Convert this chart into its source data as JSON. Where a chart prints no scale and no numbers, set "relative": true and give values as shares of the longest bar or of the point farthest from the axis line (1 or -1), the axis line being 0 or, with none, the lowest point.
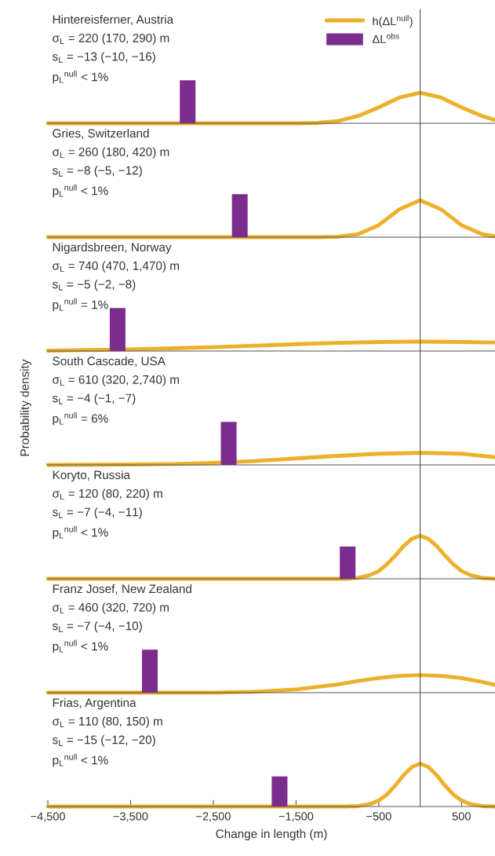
{
  "chart_data": [
    {
      "type": "line",
      "title": "Hintereisferner, Austria",
      "relative": true,
      "legend": "top right",
      "tick_labels": false,
      "annotations": [
        "σ$_{L}$ = 220 (170, 290) m",
        "s$_{L}$ = −13 (−10, −16)",
        "p$_{L}$$^{null}$ < 1%"
      ],
      "xlim": [
        -4500,
        905
      ],
      "series": [
        {
          "name": "h(ΔL$^{null}$)",
          "color": "#ecb02a",
          "x": [
            -4500,
            -1500,
            -1250,
            -1000,
            -750,
            -500,
            -250,
            0,
            250,
            500,
            750,
            900
          ],
          "values": [
            0,
            0,
            0.01,
            0.05,
            0.17,
            0.37,
            0.6,
            0.71,
            0.6,
            0.37,
            0.17,
            0.08
          ]
        },
        {
          "type": "bar",
          "name": "ΔL$^{obs}$",
          "color": "#7b2d8e",
          "x": [
            -2810
          ],
          "values": [
            1
          ]
        }
      ]
    },
    {
      "type": "line",
      "title": "Gries, Switzerland",
      "relative": true,
      "tick_labels": false,
      "annotations": [
        "σ$_{L}$ = 260 (180, 420) m",
        "s$_{L}$ = −8 (−5, −12)",
        "p$_{L}$$^{null}$ < 1%"
      ],
      "xlim": [
        -4500,
        905
      ],
      "series": [
        {
          "color": "#ecb02a",
          "x": [
            -4500,
            -1250,
            -1000,
            -750,
            -500,
            -250,
            0,
            250,
            500,
            750,
            900
          ],
          "values": [
            0,
            0,
            0.01,
            0.07,
            0.28,
            0.65,
            0.86,
            0.65,
            0.28,
            0.07,
            0.02
          ]
        },
        {
          "type": "bar",
          "color": "#7b2d8e",
          "x": [
            -2180
          ],
          "values": [
            1
          ]
        }
      ]
    },
    {
      "type": "line",
      "title": "Nigardsbreen, Norway",
      "relative": true,
      "tick_labels": false,
      "annotations": [
        "σ$_{L}$ = 740 (470, 1,470) m",
        "s$_{L}$ = −5 (−2, −8)",
        "p$_{L}$$^{null}$ = 1%"
      ],
      "xlim": [
        -4500,
        905
      ],
      "series": [
        {
          "color": "#ecb02a",
          "x": [
            -4500,
            -3500,
            -2500,
            -1500,
            -1000,
            -500,
            0,
            500,
            900
          ],
          "values": [
            0.01,
            0.04,
            0.09,
            0.16,
            0.19,
            0.21,
            0.22,
            0.21,
            0.2
          ]
        },
        {
          "type": "bar",
          "color": "#7b2d8e",
          "x": [
            -3657
          ],
          "values": [
            1
          ]
        }
      ]
    },
    {
      "type": "line",
      "title": "South Cascade, USA",
      "relative": true,
      "tick_labels": false,
      "ylabel": "Probability density",
      "annotations": [
        "σ$_{L}$ = 610 (320, 2,740) m",
        "s$_{L}$ = −4 (−1, −7)",
        "p$_{L}$$^{null}$ = 6%"
      ],
      "xlim": [
        -4500,
        905
      ],
      "series": [
        {
          "color": "#ecb02a",
          "x": [
            -4500,
            -3500,
            -3000,
            -2500,
            -2000,
            -1500,
            -1000,
            -500,
            0,
            500,
            900
          ],
          "values": [
            0,
            0.01,
            0.02,
            0.045,
            0.09,
            0.15,
            0.21,
            0.26,
            0.28,
            0.26,
            0.18
          ]
        },
        {
          "type": "bar",
          "color": "#7b2d8e",
          "x": [
            -2314
          ],
          "values": [
            1
          ]
        }
      ]
    },
    {
      "type": "line",
      "title": "Koryto, Russia",
      "relative": true,
      "tick_labels": false,
      "annotations": [
        "σ$_{L}$ = 120 (80, 220) m",
        "s$_{L}$ = −7 (−4, −11)",
        "p$_{L}$$^{null}$ < 1%"
      ],
      "xlim": [
        -4500,
        905
      ],
      "series": [
        {
          "color": "#ecb02a",
          "x": [
            -4500,
            -900,
            -750,
            -600,
            -500,
            -400,
            -300,
            -200,
            -100,
            0,
            100,
            200,
            300,
            400,
            500,
            600,
            750,
            900
          ],
          "values": [
            0,
            0,
            0.02,
            0.09,
            0.18,
            0.34,
            0.54,
            0.76,
            0.93,
            1,
            0.93,
            0.76,
            0.54,
            0.34,
            0.18,
            0.09,
            0.02,
            0
          ]
        },
        {
          "type": "bar",
          "color": "#7b2d8e",
          "x": [
            -876
          ],
          "values": [
            0.75
          ]
        }
      ]
    },
    {
      "type": "line",
      "title": "Franz Josef, New Zealand",
      "relative": true,
      "tick_labels": false,
      "annotations": [
        "σ$_{L}$ = 460 (320, 720) m",
        "s$_{L}$ = −7 (−4, −10)",
        "p$_{L}$$^{null}$ < 1%"
      ],
      "xlim": [
        -4500,
        905
      ],
      "series": [
        {
          "color": "#ecb02a",
          "x": [
            -4500,
            -2500,
            -2000,
            -1500,
            -1000,
            -750,
            -500,
            -250,
            0,
            250,
            500,
            750,
            900
          ],
          "values": [
            0,
            0,
            0.02,
            0.075,
            0.19,
            0.27,
            0.34,
            0.39,
            0.41,
            0.39,
            0.34,
            0.25,
            0.18
          ]
        },
        {
          "type": "bar",
          "color": "#7b2d8e",
          "x": [
            -3267
          ],
          "values": [
            1
          ]
        }
      ]
    },
    {
      "type": "line",
      "title": "Frias, Argentina",
      "relative": true,
      "tick_labels": "x",
      "xlabel": "Change in length (m)",
      "annotations": [
        "σ$_{L}$ = 110 (80, 150) m",
        "s$_{L}$ = −15 (−12, −20)",
        "p$_{L}$$^{null}$ < 1%"
      ],
      "xlim": [
        -4500,
        905
      ],
      "xticks": [
        {
          "value": -4500,
          "label": "−4,500"
        },
        {
          "value": -3500,
          "label": "−3,500"
        },
        {
          "value": -2500,
          "label": "−2,500"
        },
        {
          "value": -1500,
          "label": "−1,500"
        },
        {
          "value": -500,
          "label": "−500"
        },
        500
      ],
      "series": [
        {
          "color": "#ecb02a",
          "x": [
            -4500,
            -900,
            -750,
            -600,
            -500,
            -400,
            -300,
            -200,
            -100,
            0,
            100,
            200,
            300,
            400,
            500,
            600,
            750,
            900
          ],
          "values": [
            0,
            0,
            0.01,
            0.06,
            0.14,
            0.28,
            0.49,
            0.73,
            0.92,
            1,
            0.92,
            0.73,
            0.49,
            0.28,
            0.14,
            0.06,
            0.01,
            0
          ]
        },
        {
          "type": "bar",
          "color": "#7b2d8e",
          "x": [
            -1699
          ],
          "values": [
            0.7
          ]
        }
      ]
    }
  ]
}
